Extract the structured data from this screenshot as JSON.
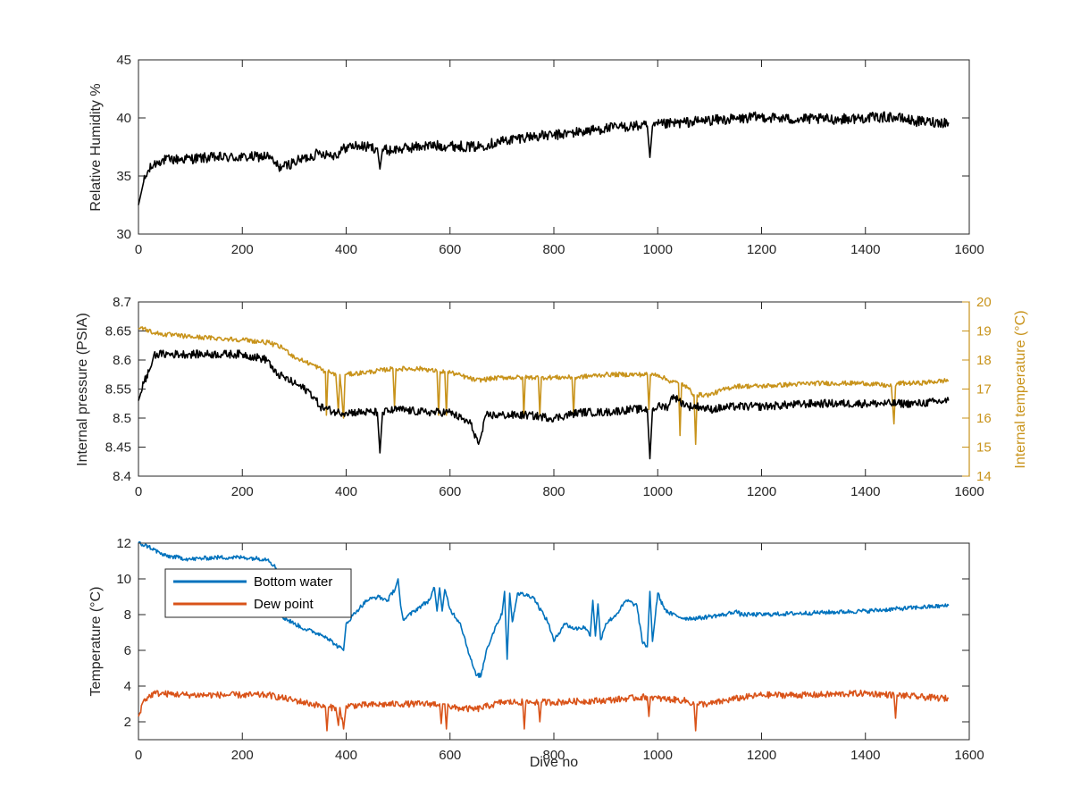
{
  "chart_data": [
    {
      "type": "line",
      "title": "",
      "xlabel": "",
      "ylabel": "Relative Humidity %",
      "xlim": [
        0,
        1600
      ],
      "ylim": [
        30,
        45
      ],
      "xticks": [
        0,
        200,
        400,
        600,
        800,
        1000,
        1200,
        1400,
        1600
      ],
      "yticks": [
        30,
        35,
        40,
        45
      ],
      "grid": false,
      "series": [
        {
          "color": "#000000",
          "noise": 0.45,
          "x": [
            0,
            5,
            10,
            20,
            30,
            40,
            60,
            100,
            150,
            200,
            250,
            260,
            270,
            280,
            300,
            350,
            380,
            400,
            420,
            440,
            460,
            465,
            470,
            480,
            500,
            550,
            600,
            650,
            700,
            750,
            800,
            850,
            900,
            950,
            980,
            985,
            990,
            1000,
            1050,
            1100,
            1150,
            1200,
            1250,
            1300,
            1350,
            1400,
            1450,
            1500,
            1560
          ],
          "y": [
            32.5,
            33.5,
            34.5,
            35.5,
            36,
            36.3,
            36.4,
            36.5,
            36.6,
            36.6,
            36.7,
            36.2,
            35.8,
            35.8,
            36.2,
            37,
            36.8,
            37.5,
            37.6,
            37.5,
            37.4,
            35.6,
            37.3,
            37.2,
            37.3,
            37.6,
            37.6,
            37.5,
            38,
            38.4,
            38.5,
            38.8,
            39.1,
            39.3,
            39.3,
            36.6,
            39.3,
            39.4,
            39.6,
            39.8,
            39.9,
            40.1,
            39.9,
            39.9,
            39.9,
            40,
            40.1,
            39.7,
            39.6
          ]
        }
      ]
    },
    {
      "type": "line",
      "title": "",
      "xlabel": "",
      "ylabel": "Internal pressure (PSIA)",
      "ylabel_right": "Internal temperature (°C)",
      "xlim": [
        0,
        1600
      ],
      "ylim": [
        8.4,
        8.7
      ],
      "ylim_right": [
        14,
        20
      ],
      "xticks": [
        0,
        200,
        400,
        600,
        800,
        1000,
        1200,
        1400,
        1600
      ],
      "yticks": [
        8.4,
        8.45,
        8.5,
        8.55,
        8.6,
        8.65,
        8.7
      ],
      "yticks_right": [
        14,
        15,
        16,
        17,
        18,
        19,
        20
      ],
      "grid": false,
      "series": [
        {
          "axis": "right",
          "color": "#C8931B",
          "noise": 0.08,
          "x": [
            0,
            10,
            20,
            40,
            100,
            200,
            250,
            280,
            300,
            340,
            360,
            362,
            365,
            380,
            385,
            388,
            395,
            398,
            400,
            450,
            490,
            493,
            496,
            550,
            575,
            578,
            581,
            590,
            593,
            596,
            650,
            700,
            740,
            742,
            745,
            770,
            773,
            776,
            835,
            838,
            841,
            900,
            980,
            983,
            986,
            1000,
            1020,
            1040,
            1043,
            1046,
            1060,
            1070,
            1073,
            1076,
            1100,
            1130,
            1150,
            1200,
            1300,
            1400,
            1450,
            1455,
            1458,
            1461,
            1500,
            1560
          ],
          "y": [
            19.1,
            19.1,
            19,
            18.9,
            18.8,
            18.7,
            18.6,
            18.4,
            18.1,
            17.8,
            17.6,
            16.1,
            17.6,
            17.5,
            16.2,
            17.5,
            16.0,
            17.5,
            17.5,
            17.6,
            17.7,
            16.4,
            17.7,
            17.7,
            17.6,
            16.1,
            17.6,
            17.6,
            16.1,
            17.6,
            17.3,
            17.4,
            17.4,
            16,
            17.4,
            17.4,
            16.1,
            17.4,
            17.4,
            16.1,
            17.4,
            17.5,
            17.5,
            16.3,
            17.5,
            17.5,
            17.3,
            17.2,
            15.4,
            17.2,
            17.0,
            16.8,
            15.1,
            16.8,
            16.8,
            17.0,
            17.1,
            17.1,
            17.2,
            17.2,
            17.1,
            15.8,
            17.1,
            17.2,
            17.2,
            17.3
          ]
        },
        {
          "axis": "left",
          "color": "#000000",
          "noise": 0.007,
          "x": [
            0,
            10,
            20,
            25,
            30,
            40,
            100,
            200,
            250,
            260,
            280,
            300,
            330,
            350,
            380,
            400,
            450,
            460,
            465,
            470,
            500,
            550,
            600,
            640,
            655,
            660,
            670,
            700,
            750,
            800,
            850,
            900,
            950,
            980,
            985,
            990,
            1000,
            1020,
            1030,
            1040,
            1060,
            1080,
            1100,
            1150,
            1200,
            1300,
            1400,
            1500,
            1560
          ],
          "y": [
            8.53,
            8.56,
            8.58,
            8.59,
            8.61,
            8.61,
            8.61,
            8.61,
            8.6,
            8.58,
            8.57,
            8.56,
            8.545,
            8.52,
            8.51,
            8.51,
            8.51,
            8.51,
            8.44,
            8.51,
            8.515,
            8.51,
            8.51,
            8.49,
            8.455,
            8.47,
            8.505,
            8.505,
            8.505,
            8.5,
            8.51,
            8.51,
            8.515,
            8.515,
            8.43,
            8.515,
            8.52,
            8.52,
            8.54,
            8.53,
            8.52,
            8.52,
            8.515,
            8.52,
            8.52,
            8.525,
            8.525,
            8.525,
            8.53
          ]
        }
      ]
    },
    {
      "type": "line",
      "title": "",
      "xlabel": "Dive no",
      "ylabel": "Temperature (°C)",
      "xlim": [
        0,
        1600
      ],
      "ylim": [
        1,
        12
      ],
      "xticks": [
        0,
        200,
        400,
        600,
        800,
        1000,
        1200,
        1400,
        1600
      ],
      "yticks": [
        2,
        4,
        6,
        8,
        10,
        12
      ],
      "grid": false,
      "legend": "top-left",
      "series": [
        {
          "name": "Bottom water",
          "color": "#0072BD",
          "noise": 0.12,
          "x": [
            0,
            20,
            50,
            100,
            150,
            200,
            250,
            265,
            270,
            275,
            300,
            320,
            340,
            360,
            380,
            395,
            400,
            420,
            440,
            460,
            480,
            495,
            500,
            505,
            510,
            540,
            560,
            570,
            575,
            580,
            585,
            590,
            600,
            620,
            640,
            650,
            660,
            670,
            690,
            700,
            705,
            710,
            715,
            720,
            730,
            760,
            770,
            780,
            790,
            800,
            820,
            840,
            860,
            870,
            875,
            880,
            885,
            890,
            900,
            920,
            940,
            960,
            970,
            980,
            985,
            990,
            1000,
            1010,
            1020,
            1050,
            1080,
            1100,
            1130,
            1150,
            1160,
            1200,
            1300,
            1400,
            1500,
            1560
          ],
          "y": [
            12,
            11.8,
            11.3,
            11.1,
            11.2,
            11.2,
            11.1,
            10.6,
            9.5,
            7.9,
            7.5,
            7.2,
            7,
            6.8,
            6.3,
            6.0,
            7.5,
            8.2,
            8.8,
            9.0,
            8.8,
            9.5,
            10.0,
            8.5,
            7.7,
            8.4,
            8.8,
            9.5,
            8.2,
            9.5,
            8.2,
            9.4,
            8.3,
            7.5,
            5.5,
            4.6,
            4.6,
            6,
            7.5,
            8.0,
            9.3,
            5.5,
            9.2,
            7.6,
            9.2,
            9.0,
            8.5,
            8.0,
            7.5,
            6.5,
            7.5,
            7.2,
            7.3,
            6.8,
            8.8,
            6.8,
            8.6,
            6.6,
            7.5,
            8.0,
            8.8,
            8.5,
            6.5,
            6.2,
            9.3,
            6.5,
            9.2,
            8.5,
            8.1,
            7.8,
            7.8,
            7.9,
            8.0,
            8.2,
            8.0,
            8.0,
            8.1,
            8.2,
            8.4,
            8.5
          ]
        },
        {
          "name": "Dew point",
          "color": "#D95319",
          "noise": 0.18,
          "x": [
            0,
            10,
            30,
            100,
            200,
            250,
            300,
            350,
            360,
            363,
            366,
            380,
            385,
            388,
            395,
            400,
            500,
            580,
            583,
            586,
            590,
            593,
            596,
            600,
            650,
            700,
            740,
            743,
            746,
            770,
            773,
            776,
            800,
            900,
            980,
            983,
            986,
            1000,
            1050,
            1070,
            1073,
            1076,
            1100,
            1150,
            1200,
            1300,
            1400,
            1455,
            1458,
            1461,
            1500,
            1560
          ],
          "y": [
            2.3,
            3.2,
            3.6,
            3.5,
            3.5,
            3.5,
            3.2,
            2.9,
            2.8,
            1.5,
            2.8,
            2.8,
            1.8,
            2.8,
            1.6,
            2.9,
            3.0,
            3.0,
            1.9,
            3.0,
            3.0,
            1.6,
            3.0,
            2.8,
            2.7,
            3.1,
            3.1,
            1.6,
            3.1,
            3.1,
            2.0,
            3.1,
            3.1,
            3.2,
            3.4,
            2.3,
            3.4,
            3.3,
            3.2,
            3.0,
            1.5,
            3.0,
            3.0,
            3.3,
            3.5,
            3.5,
            3.6,
            3.5,
            2.2,
            3.5,
            3.4,
            3.3
          ]
        }
      ]
    }
  ]
}
